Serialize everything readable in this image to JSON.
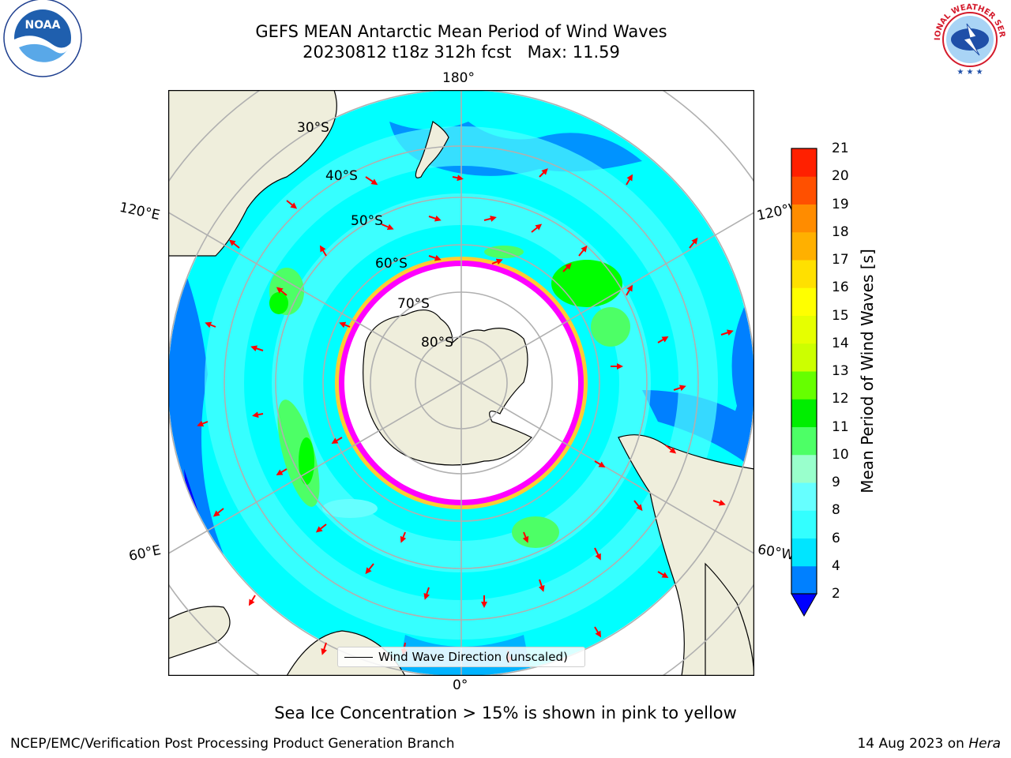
{
  "title": {
    "line1": "GEFS MEAN Antarctic Mean Period of Wind Waves",
    "run": "20230812 t18z 312h fcst",
    "max": "Max: 11.59"
  },
  "map": {
    "longitude_labels": [
      "180°",
      "120°E",
      "120°W",
      "60°E",
      "60°W",
      "0°"
    ],
    "latitude_labels": [
      "30°S",
      "40°S",
      "50°S",
      "60°S",
      "70°S",
      "80°S"
    ],
    "legend_label": "Wind Wave Direction (unscaled)",
    "colors": {
      "land": "#efeedc",
      "ocean_light": "#00ffff",
      "ocean_mid": "#4dffff",
      "ocean_dark": "#0080ff",
      "ocean_deep": "#0000ff",
      "green": "#00ff00",
      "arrow": "#ff0000",
      "ice_pink": "#ff00ff",
      "ice_yellow": "#ffcc33"
    }
  },
  "colorbar": {
    "title": "Mean Period of Wind Waves [s]",
    "ticks": [
      "21",
      "20",
      "19",
      "18",
      "17",
      "16",
      "15",
      "14",
      "13",
      "12",
      "11",
      "10",
      "9",
      "8",
      "6",
      "4",
      "2"
    ],
    "levels": [
      2,
      4,
      6,
      8,
      9,
      10,
      11,
      12,
      13,
      14,
      15,
      16,
      17,
      18,
      19,
      20,
      21
    ],
    "colors": [
      "#0080ff",
      "#00e5ff",
      "#33ffff",
      "#66ffff",
      "#99ffcc",
      "#4dff66",
      "#00ee00",
      "#66ff00",
      "#ccff00",
      "#e6ff00",
      "#ffff00",
      "#ffe000",
      "#ffb000",
      "#ff8c00",
      "#ff5000",
      "#ff2000",
      "#ff0000"
    ],
    "under_color": "#0000ff"
  },
  "caption": "Sea Ice Concentration > 15% is shown in pink to yellow",
  "footer": {
    "left": "NCEP/EMC/Verification Post Processing Product Generation Branch",
    "date": "14 Aug 2023 on ",
    "host": "Hera"
  },
  "logos": {
    "noaa": "NOAA",
    "nws": "NATIONAL WEATHER SERVICE"
  }
}
